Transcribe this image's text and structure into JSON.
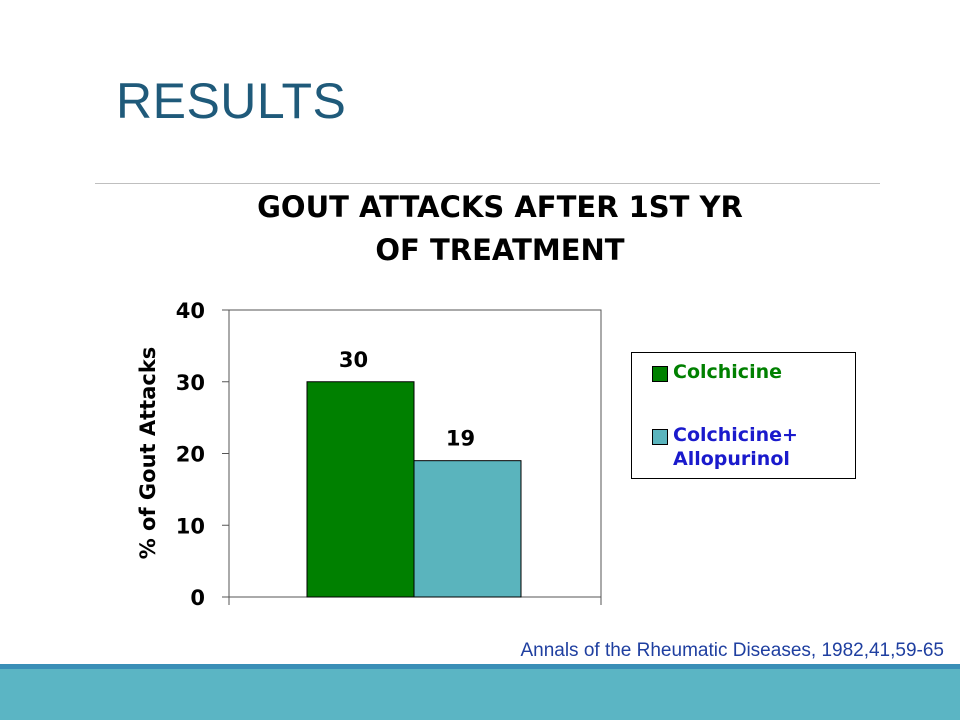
{
  "slide": {
    "title": "RESULTS",
    "citation": "Annals of the Rheumatic Diseases,  1982,41,59-65"
  },
  "colors": {
    "title": "#1f5a7a",
    "citation": "#1f3fa0",
    "footer_band": "#5bb5c4",
    "footer_line": "#3a8fb7"
  },
  "chart_data": {
    "type": "bar",
    "title_lines": [
      "GOUT ATTACKS AFTER 1ST YR",
      "OF TREATMENT"
    ],
    "ylabel": "% of Gout Attacks",
    "xlabel": "",
    "ylim": [
      0,
      40
    ],
    "yticks": [
      0,
      10,
      20,
      30,
      40
    ],
    "grid": false,
    "legend_position": "right",
    "series": [
      {
        "name": "Colchicine",
        "values": [
          30
        ],
        "color": "#008000",
        "label_color": "#008000"
      },
      {
        "name": "Colchicine+\nAllopurinol",
        "values": [
          19
        ],
        "color": "#5ab4bd",
        "label_color": "#1a1acc"
      }
    ],
    "data_labels": [
      "30",
      "19"
    ]
  }
}
